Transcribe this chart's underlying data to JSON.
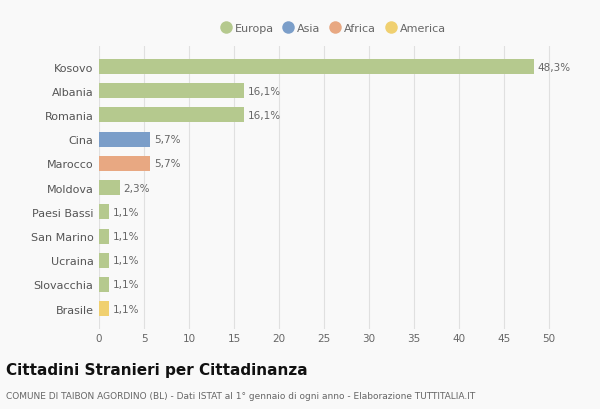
{
  "countries": [
    "Kosovo",
    "Albania",
    "Romania",
    "Cina",
    "Marocco",
    "Moldova",
    "Paesi Bassi",
    "San Marino",
    "Ucraina",
    "Slovacchia",
    "Brasile"
  ],
  "values": [
    48.3,
    16.1,
    16.1,
    5.7,
    5.7,
    2.3,
    1.1,
    1.1,
    1.1,
    1.1,
    1.1
  ],
  "labels": [
    "48,3%",
    "16,1%",
    "16,1%",
    "5,7%",
    "5,7%",
    "2,3%",
    "1,1%",
    "1,1%",
    "1,1%",
    "1,1%",
    "1,1%"
  ],
  "continents": [
    "Europa",
    "Europa",
    "Europa",
    "Asia",
    "Africa",
    "Europa",
    "Europa",
    "Europa",
    "Europa",
    "Europa",
    "America"
  ],
  "colors": {
    "Europa": "#b5c98e",
    "Asia": "#7b9ec9",
    "Africa": "#e8a882",
    "America": "#f0d070"
  },
  "legend_labels": [
    "Europa",
    "Asia",
    "Africa",
    "America"
  ],
  "legend_colors": [
    "#b5c98e",
    "#7b9ec9",
    "#e8a882",
    "#f0d070"
  ],
  "xlim": [
    0,
    52
  ],
  "xticks": [
    0,
    5,
    10,
    15,
    20,
    25,
    30,
    35,
    40,
    45,
    50
  ],
  "title": "Cittadini Stranieri per Cittadinanza",
  "subtitle": "COMUNE DI TAIBON AGORDINO (BL) - Dati ISTAT al 1° gennaio di ogni anno - Elaborazione TUTTITALIA.IT",
  "background_color": "#f9f9f9",
  "grid_color": "#e0e0e0",
  "bar_height": 0.62,
  "label_fontsize": 7.5,
  "title_fontsize": 11,
  "subtitle_fontsize": 6.5,
  "ytick_fontsize": 8,
  "xtick_fontsize": 7.5,
  "legend_fontsize": 8
}
